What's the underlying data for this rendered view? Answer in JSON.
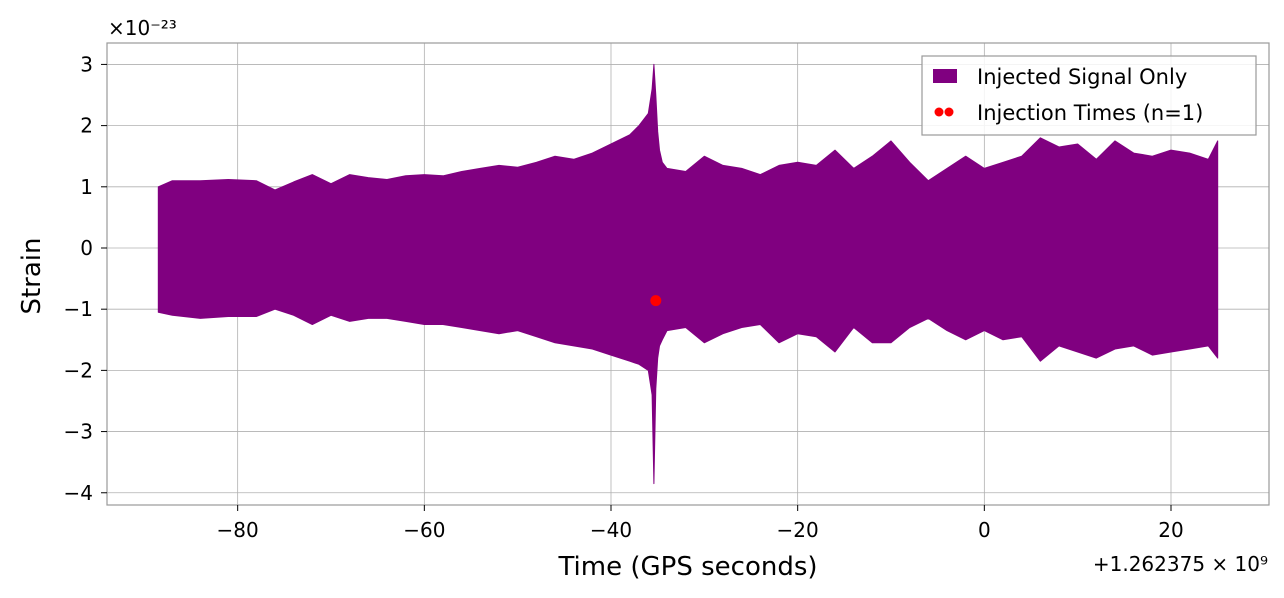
{
  "chart_data": {
    "type": "line",
    "xlabel": "Time (GPS seconds)",
    "ylabel": "Strain",
    "x_offset_label": "+1.262375 × 10⁹",
    "y_scale_label": "×10⁻²³",
    "xlim": [
      -94,
      30.5
    ],
    "ylim": [
      -4.2,
      3.35
    ],
    "grid": true,
    "legend_position": "top-right",
    "x_ticks": [
      {
        "value": -80,
        "label": "−80"
      },
      {
        "value": -60,
        "label": "−60"
      },
      {
        "value": -40,
        "label": "−40"
      },
      {
        "value": -20,
        "label": "−20"
      },
      {
        "value": 0,
        "label": "0"
      },
      {
        "value": 20,
        "label": "20"
      }
    ],
    "y_ticks": [
      {
        "value": 3,
        "label": "3"
      },
      {
        "value": 2,
        "label": "2"
      },
      {
        "value": 1,
        "label": "1"
      },
      {
        "value": 0,
        "label": "0"
      },
      {
        "value": -1,
        "label": "−1"
      },
      {
        "value": -2,
        "label": "−2"
      },
      {
        "value": -3,
        "label": "−3"
      },
      {
        "value": -4,
        "label": "−4"
      }
    ],
    "series": [
      {
        "name": "Injected Signal Only",
        "color": "#800080",
        "style": "envelope",
        "x": [
          -88.5,
          -87,
          -84,
          -81,
          -78,
          -76,
          -74,
          -72,
          -70,
          -68,
          -66,
          -64,
          -62,
          -60,
          -58,
          -56,
          -54,
          -52,
          -50,
          -48,
          -46,
          -44,
          -42,
          -40,
          -38,
          -37,
          -36,
          -35.6,
          -35.4,
          -35.2,
          -35.0,
          -34.8,
          -34.5,
          -34,
          -32,
          -30,
          -28,
          -26,
          -24,
          -22,
          -20,
          -18,
          -16,
          -14,
          -12,
          -10,
          -8,
          -6,
          -4,
          -2,
          0,
          2,
          4,
          6,
          8,
          10,
          12,
          14,
          16,
          18,
          20,
          22,
          24,
          25
        ],
        "upper": [
          1.0,
          1.1,
          1.1,
          1.12,
          1.1,
          0.95,
          1.08,
          1.2,
          1.05,
          1.2,
          1.15,
          1.12,
          1.18,
          1.2,
          1.18,
          1.25,
          1.3,
          1.35,
          1.32,
          1.4,
          1.5,
          1.45,
          1.55,
          1.7,
          1.85,
          2.0,
          2.2,
          2.6,
          3.0,
          2.5,
          1.9,
          1.6,
          1.4,
          1.3,
          1.25,
          1.5,
          1.35,
          1.3,
          1.2,
          1.35,
          1.4,
          1.35,
          1.6,
          1.3,
          1.5,
          1.75,
          1.4,
          1.1,
          1.3,
          1.5,
          1.3,
          1.4,
          1.5,
          1.8,
          1.65,
          1.7,
          1.45,
          1.75,
          1.55,
          1.5,
          1.6,
          1.55,
          1.45,
          1.75
        ],
        "lower": [
          -1.05,
          -1.1,
          -1.15,
          -1.12,
          -1.12,
          -1.0,
          -1.1,
          -1.25,
          -1.1,
          -1.2,
          -1.15,
          -1.15,
          -1.2,
          -1.25,
          -1.25,
          -1.3,
          -1.35,
          -1.4,
          -1.35,
          -1.45,
          -1.55,
          -1.6,
          -1.65,
          -1.75,
          -1.85,
          -1.9,
          -2.0,
          -2.4,
          -3.85,
          -2.3,
          -1.8,
          -1.6,
          -1.5,
          -1.35,
          -1.3,
          -1.55,
          -1.4,
          -1.3,
          -1.25,
          -1.55,
          -1.4,
          -1.45,
          -1.7,
          -1.3,
          -1.55,
          -1.55,
          -1.3,
          -1.15,
          -1.35,
          -1.5,
          -1.35,
          -1.5,
          -1.45,
          -1.85,
          -1.6,
          -1.7,
          -1.8,
          -1.65,
          -1.6,
          -1.75,
          -1.7,
          -1.65,
          -1.6,
          -1.8
        ]
      },
      {
        "name": "Injection Times (n=1)",
        "color": "#ff0000",
        "style": "scatter",
        "points": [
          {
            "x": -35.2,
            "y": -0.86
          }
        ]
      }
    ]
  }
}
